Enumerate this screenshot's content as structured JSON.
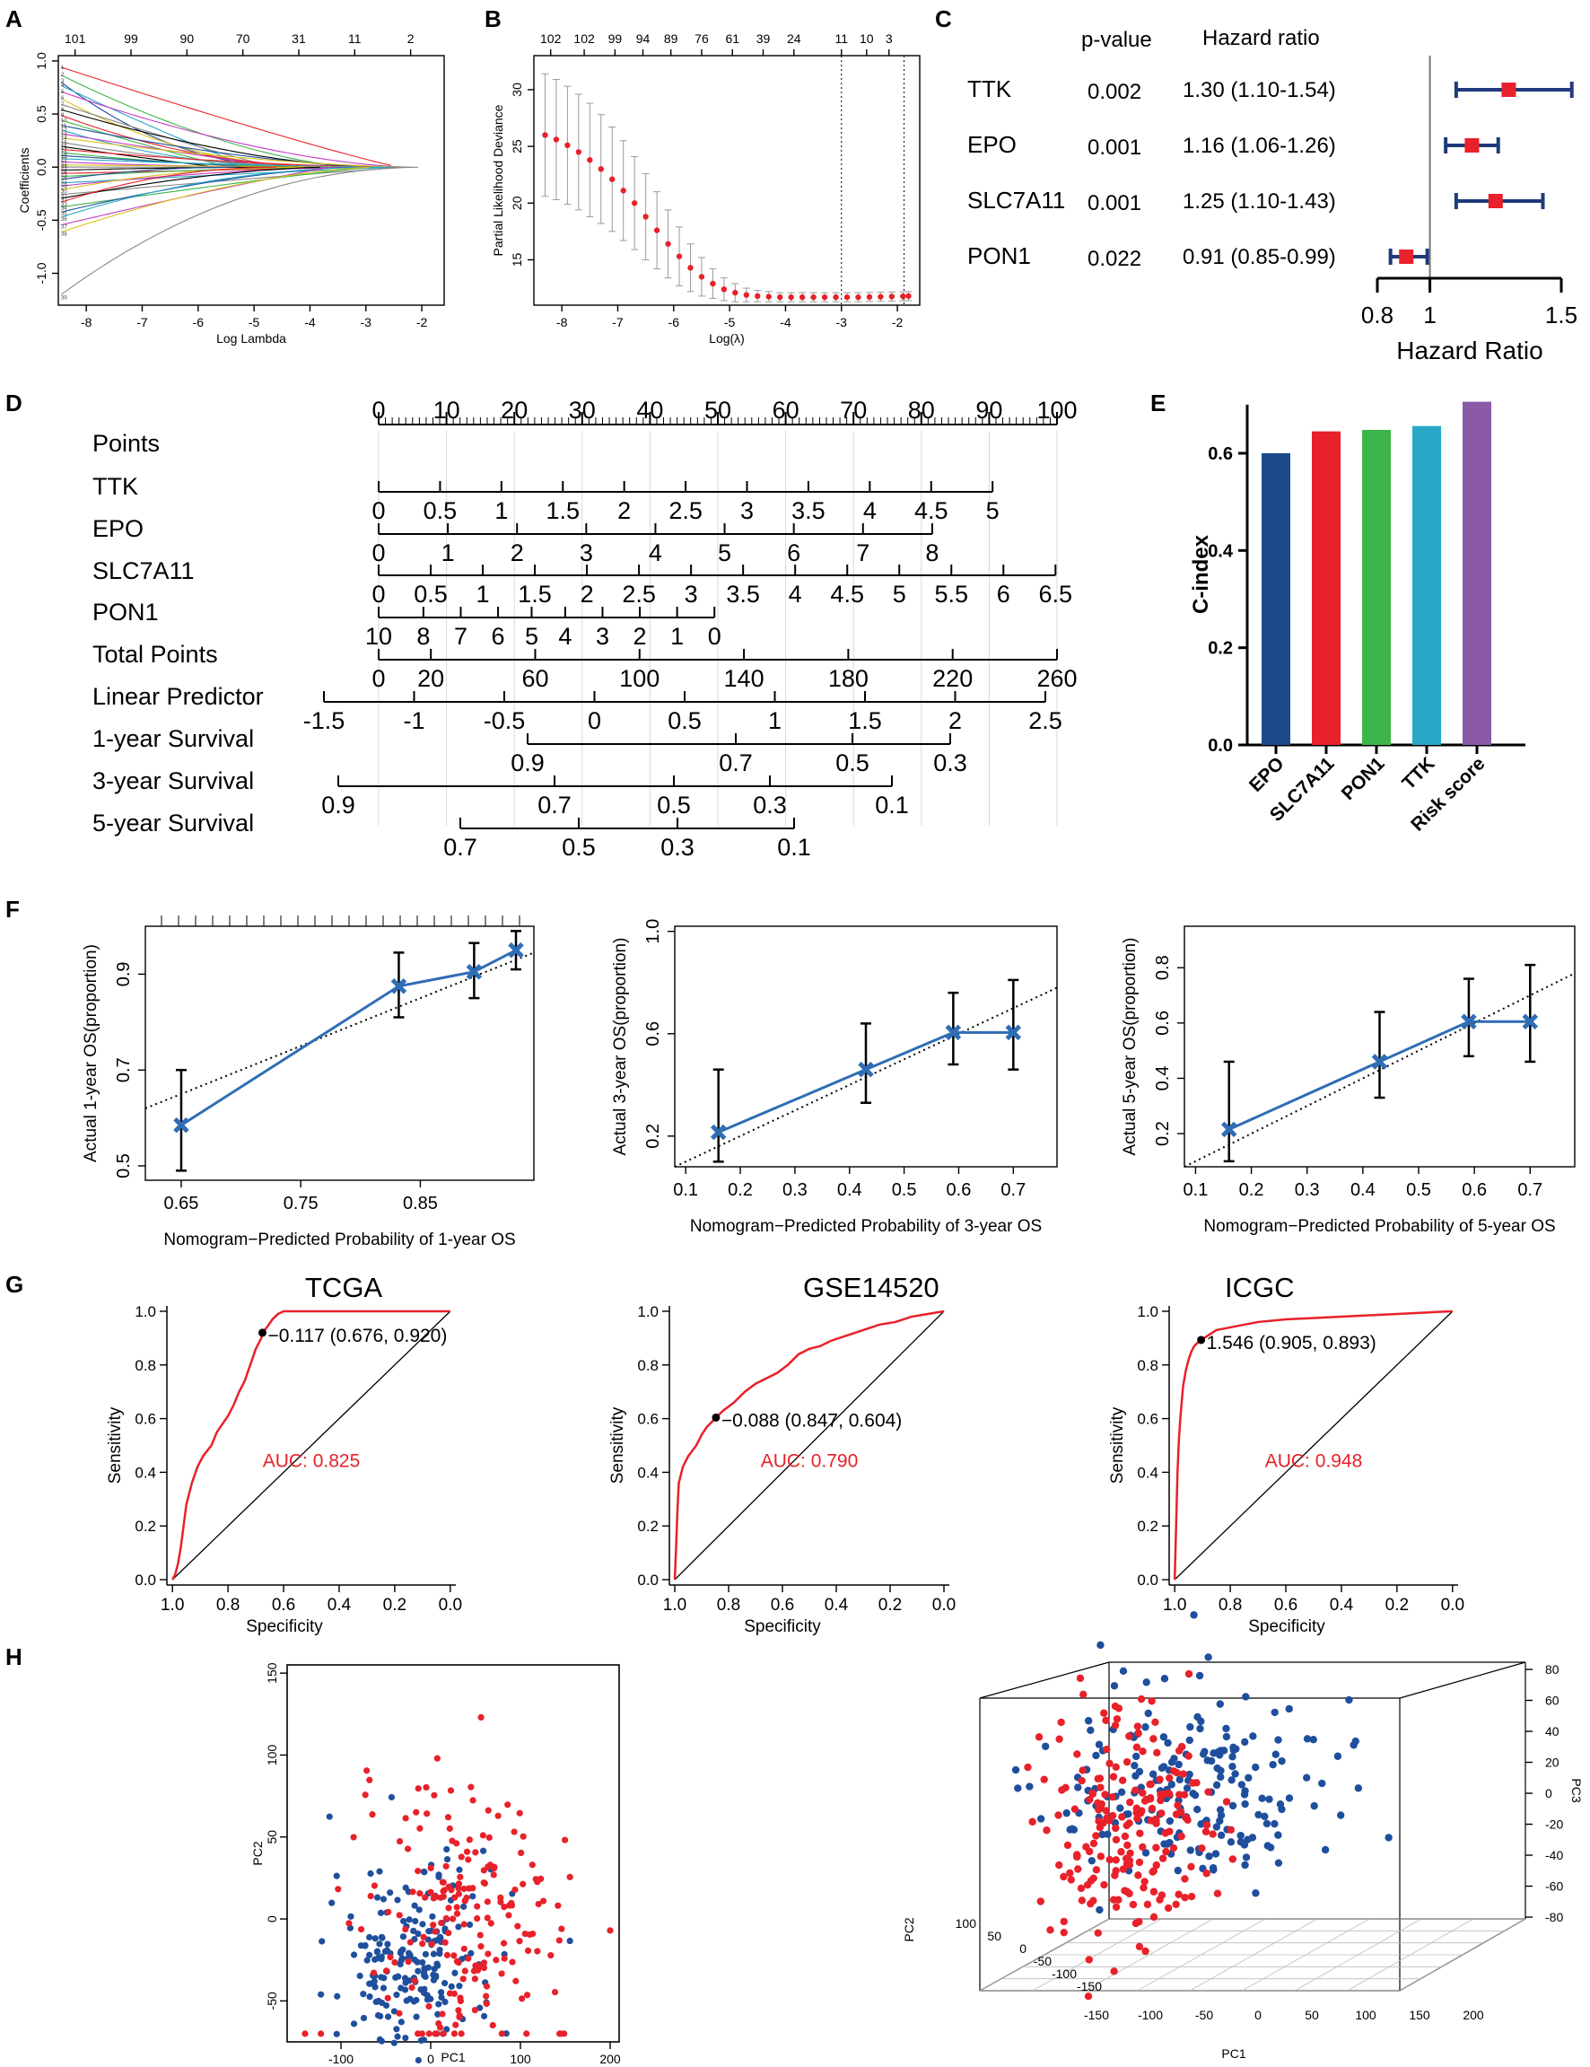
{
  "colors": {
    "red": "#e8212a",
    "navy": "#1f3a7a",
    "blue": "#1f4f9c",
    "mid_blue": "#2f6db5",
    "grey": "#9a9a9a",
    "black": "#000000",
    "bar_epo": "#1c4a8c",
    "bar_slc7a11": "#e8212a",
    "bar_pon1": "#3db54a",
    "bar_ttk": "#27a8c7",
    "bar_risk": "#8a5aa8"
  },
  "chart_data": [
    {
      "panel": "A",
      "type": "line",
      "title": "",
      "xlabel": "Log Lambda",
      "ylabel": "Coefficients",
      "xlim": [
        -8.5,
        -1.6
      ],
      "ylim": [
        -1.3,
        1.05
      ],
      "xticks": [
        -8,
        -7,
        -6,
        -5,
        -4,
        -3,
        -2
      ],
      "yticks": [
        -1.0,
        -0.5,
        0.0,
        0.5,
        1.0
      ],
      "top_axis": {
        "positions": [
          -8.2,
          -7.2,
          -6.2,
          -5.2,
          -4.2,
          -3.2,
          -2.2
        ],
        "labels": [
          "101",
          "99",
          "90",
          "70",
          "31",
          "11",
          "2"
        ]
      },
      "series_start_values": [
        0.95,
        0.88,
        0.82,
        0.78,
        0.72,
        0.66,
        0.6,
        0.55,
        0.5,
        0.45,
        0.4,
        0.36,
        0.32,
        0.28,
        0.24,
        0.2,
        0.17,
        0.14,
        0.11,
        0.08,
        0.05,
        0.02,
        0.0,
        -0.03,
        -0.06,
        -0.09,
        -0.12,
        -0.15,
        -0.18,
        -0.22,
        -0.26,
        -0.3,
        -0.34,
        -0.38,
        -0.43,
        -0.48,
        -0.55,
        -0.62,
        -1.22
      ],
      "series_zero_at": [
        -2.4,
        -3.1,
        -4.2,
        -5.0,
        -2.2,
        -3.6,
        -4.6,
        -2.9,
        -3.3,
        -5.4,
        -2.6,
        -3.9,
        -4.4,
        -2.1,
        -3.0,
        -5.6,
        -2.5,
        -3.4,
        -4.8,
        -2.3,
        -3.8,
        -2.7,
        -2.0,
        -4.1,
        -2.8,
        -3.5,
        -5.2,
        -2.4,
        -3.2,
        -4.0,
        -2.2,
        -3.7,
        -4.5,
        -2.9,
        -3.1,
        -2.6,
        -3.6,
        -2.8,
        -1.9
      ]
    },
    {
      "panel": "B",
      "type": "scatter",
      "title": "",
      "xlabel": "Log(λ)",
      "ylabel": "Partial Likelihood Deviance",
      "xlim": [
        -8.5,
        -1.6
      ],
      "ylim": [
        11,
        33
      ],
      "xticks": [
        -8,
        -7,
        -6,
        -5,
        -4,
        -3,
        -2
      ],
      "yticks": [
        15,
        20,
        25,
        30
      ],
      "top_axis": {
        "positions": [
          -8.2,
          -7.6,
          -7.05,
          -6.55,
          -6.05,
          -5.5,
          -4.95,
          -4.4,
          -3.85,
          -3.0,
          -2.55,
          -2.15
        ],
        "labels": [
          "102",
          "102",
          "99",
          "94",
          "89",
          "76",
          "61",
          "39",
          "24",
          "11",
          "10",
          "3"
        ]
      },
      "vlines": [
        -3.0,
        -1.88
      ],
      "x": [
        -8.3,
        -8.1,
        -7.9,
        -7.7,
        -7.5,
        -7.3,
        -7.1,
        -6.9,
        -6.7,
        -6.5,
        -6.3,
        -6.1,
        -5.9,
        -5.7,
        -5.5,
        -5.3,
        -5.1,
        -4.9,
        -4.7,
        -4.5,
        -4.3,
        -4.1,
        -3.9,
        -3.7,
        -3.5,
        -3.3,
        -3.1,
        -2.9,
        -2.7,
        -2.5,
        -2.3,
        -2.1,
        -1.9,
        -1.8
      ],
      "y": [
        26.0,
        25.6,
        25.1,
        24.5,
        23.8,
        23.0,
        22.1,
        21.1,
        20.0,
        18.8,
        17.6,
        16.4,
        15.3,
        14.3,
        13.5,
        12.9,
        12.4,
        12.1,
        11.9,
        11.8,
        11.75,
        11.7,
        11.7,
        11.7,
        11.7,
        11.7,
        11.7,
        11.7,
        11.7,
        11.72,
        11.74,
        11.76,
        11.78,
        11.8
      ],
      "err": [
        5.4,
        5.3,
        5.2,
        5.1,
        5.0,
        4.8,
        4.6,
        4.4,
        4.1,
        3.8,
        3.4,
        3.0,
        2.6,
        2.1,
        1.7,
        1.3,
        1.0,
        0.8,
        0.6,
        0.5,
        0.45,
        0.4,
        0.4,
        0.4,
        0.4,
        0.4,
        0.4,
        0.4,
        0.4,
        0.4,
        0.4,
        0.4,
        0.4,
        0.4
      ]
    },
    {
      "panel": "C",
      "type": "forest",
      "xlabel": "Hazard Ratio",
      "xlim": [
        0.8,
        1.5
      ],
      "xticks": [
        "0.8",
        "1",
        "1.5"
      ],
      "col_headers": [
        "p-value",
        "Hazard ratio"
      ],
      "rows": [
        {
          "gene": "TTK",
          "p": "0.002",
          "hr_text": "1.30 (1.10-1.54)",
          "hr": 1.3,
          "lo": 1.1,
          "hi": 1.54
        },
        {
          "gene": "EPO",
          "p": "0.001",
          "hr_text": "1.16 (1.06-1.26)",
          "hr": 1.16,
          "lo": 1.06,
          "hi": 1.26
        },
        {
          "gene": "SLC7A11",
          "p": "0.001",
          "hr_text": "1.25 (1.10-1.43)",
          "hr": 1.25,
          "lo": 1.1,
          "hi": 1.43
        },
        {
          "gene": "PON1",
          "p": "0.022",
          "hr_text": "0.91 (0.85-0.99)",
          "hr": 0.91,
          "lo": 0.85,
          "hi": 0.99
        }
      ]
    },
    {
      "panel": "D",
      "type": "nomogram",
      "scales": [
        {
          "label": "Points",
          "values": [
            0,
            100
          ],
          "ticks": [
            "0",
            "10",
            "20",
            "30",
            "40",
            "50",
            "60",
            "70",
            "80",
            "90",
            "100"
          ]
        },
        {
          "label": "TTK",
          "ticks": [
            "0",
            "0.5",
            "1",
            "1.5",
            "2",
            "2.5",
            "3",
            "3.5",
            "4",
            "4.5",
            "5"
          ]
        },
        {
          "label": "EPO",
          "ticks": [
            "0",
            "1",
            "2",
            "3",
            "4",
            "5",
            "6",
            "7",
            "8"
          ]
        },
        {
          "label": "SLC7A11",
          "ticks": [
            "0",
            "0.5",
            "1",
            "1.5",
            "2",
            "2.5",
            "3",
            "3.5",
            "4",
            "4.5",
            "5",
            "5.5",
            "6",
            "6.5"
          ]
        },
        {
          "label": "PON1",
          "ticks": [
            "10",
            "8",
            "7",
            "6",
            "5",
            "4",
            "3",
            "2",
            "1",
            "0"
          ]
        },
        {
          "label": "Total Points",
          "ticks": [
            "0",
            "20",
            "60",
            "100",
            "140",
            "180",
            "220",
            "260"
          ]
        },
        {
          "label": "Linear Predictor",
          "ticks": [
            "-1.5",
            "-1",
            "-0.5",
            "0",
            "0.5",
            "1",
            "1.5",
            "2",
            "2.5"
          ]
        },
        {
          "label": "1-year Survival",
          "ticks": [
            "0.9",
            "0.7",
            "0.5",
            "0.3"
          ]
        },
        {
          "label": "3-year Survival",
          "ticks": [
            "0.9",
            "0.7",
            "0.5",
            "0.3",
            "0.1"
          ]
        },
        {
          "label": "5-year Survival",
          "ticks": [
            "0.7",
            "0.5",
            "0.3",
            "0.1"
          ]
        }
      ]
    },
    {
      "panel": "E",
      "type": "bar",
      "ylabel": "C-index",
      "ylim": [
        0,
        0.72
      ],
      "yticks": [
        "0.0",
        "0.2",
        "0.4",
        "0.6"
      ],
      "categories": [
        "EPO",
        "SLC7A11",
        "PON1",
        "TTK",
        "Risk score"
      ],
      "values": [
        0.6,
        0.645,
        0.648,
        0.656,
        0.706
      ]
    },
    {
      "panel": "F",
      "type": "calibration",
      "charts": [
        {
          "xlabel": "Nomogram−Predicted Probability of 1-year OS",
          "ylabel": "Actual 1-year OS(proportion)",
          "xlim": [
            0.62,
            0.945
          ],
          "ylim": [
            0.47,
            1.0
          ],
          "xticks": [
            "0.65",
            "0.75",
            "0.85"
          ],
          "yticks": [
            "0.5",
            "0.7",
            "0.9"
          ],
          "x": [
            0.65,
            0.832,
            0.895,
            0.93
          ],
          "y": [
            0.585,
            0.875,
            0.905,
            0.95
          ],
          "lo": [
            0.49,
            0.81,
            0.85,
            0.91
          ],
          "hi": [
            0.7,
            0.945,
            0.965,
            0.99
          ]
        },
        {
          "xlabel": "Nomogram−Predicted Probability of 3-year OS",
          "ylabel": "Actual 3-year OS(proportion)",
          "xlim": [
            0.08,
            0.78
          ],
          "ylim": [
            0.08,
            1.02
          ],
          "xticks": [
            "0.1",
            "0.2",
            "0.3",
            "0.4",
            "0.5",
            "0.6",
            "0.7"
          ],
          "yticks": [
            "0.2",
            "0.6",
            "1.0"
          ],
          "x": [
            0.16,
            0.43,
            0.59,
            0.7
          ],
          "y": [
            0.215,
            0.46,
            0.605,
            0.605
          ],
          "lo": [
            0.1,
            0.33,
            0.48,
            0.46
          ],
          "hi": [
            0.46,
            0.64,
            0.76,
            0.81
          ]
        },
        {
          "xlabel": "Nomogram−Predicted Probability of 5-year OS",
          "ylabel": "Actual 5-year OS(proportion)",
          "xlim": [
            0.08,
            0.78
          ],
          "ylim": [
            0.08,
            0.95
          ],
          "xticks": [
            "0.1",
            "0.2",
            "0.3",
            "0.4",
            "0.5",
            "0.6",
            "0.7"
          ],
          "yticks": [
            "0.2",
            "0.4",
            "0.6",
            "0.8"
          ],
          "x": [
            0.16,
            0.43,
            0.59,
            0.7
          ],
          "y": [
            0.215,
            0.46,
            0.605,
            0.605
          ],
          "lo": [
            0.1,
            0.33,
            0.48,
            0.46
          ],
          "hi": [
            0.46,
            0.64,
            0.76,
            0.81
          ]
        }
      ]
    },
    {
      "panel": "G",
      "type": "roc",
      "charts": [
        {
          "title": "TCGA",
          "auc_text": "AUC: 0.825",
          "point_text": "−0.117 (0.676, 0.920)",
          "point": [
            0.676,
            0.92
          ],
          "spec": [
            1.0,
            0.99,
            0.98,
            0.97,
            0.96,
            0.95,
            0.93,
            0.91,
            0.89,
            0.86,
            0.84,
            0.82,
            0.8,
            0.78,
            0.76,
            0.74,
            0.72,
            0.7,
            0.68,
            0.676,
            0.66,
            0.64,
            0.62,
            0.6,
            0.5,
            0.3,
            0.0
          ],
          "sens": [
            0.0,
            0.02,
            0.06,
            0.12,
            0.2,
            0.28,
            0.36,
            0.42,
            0.46,
            0.5,
            0.55,
            0.58,
            0.61,
            0.65,
            0.7,
            0.74,
            0.8,
            0.86,
            0.9,
            0.92,
            0.94,
            0.97,
            0.99,
            1.0,
            1.0,
            1.0,
            1.0
          ]
        },
        {
          "title": "GSE14520",
          "auc_text": "AUC: 0.790",
          "point_text": "−0.088 (0.847, 0.604)",
          "point": [
            0.847,
            0.604
          ],
          "spec": [
            1.0,
            0.995,
            0.99,
            0.985,
            0.97,
            0.95,
            0.92,
            0.9,
            0.88,
            0.86,
            0.847,
            0.82,
            0.78,
            0.74,
            0.7,
            0.66,
            0.62,
            0.58,
            0.54,
            0.5,
            0.46,
            0.42,
            0.36,
            0.3,
            0.24,
            0.18,
            0.12,
            0.06,
            0.0
          ],
          "sens": [
            0.0,
            0.12,
            0.26,
            0.36,
            0.42,
            0.46,
            0.5,
            0.54,
            0.57,
            0.59,
            0.604,
            0.63,
            0.66,
            0.7,
            0.73,
            0.75,
            0.77,
            0.8,
            0.84,
            0.86,
            0.87,
            0.89,
            0.91,
            0.93,
            0.95,
            0.96,
            0.98,
            0.99,
            1.0
          ]
        },
        {
          "title": "ICGC",
          "auc_text": "AUC: 0.948",
          "point_text": "1.546 (0.905, 0.893)",
          "point": [
            0.905,
            0.893
          ],
          "spec": [
            1.0,
            0.995,
            0.99,
            0.985,
            0.98,
            0.975,
            0.97,
            0.96,
            0.95,
            0.94,
            0.93,
            0.92,
            0.905,
            0.88,
            0.85,
            0.8,
            0.75,
            0.7,
            0.6,
            0.5,
            0.4,
            0.3,
            0.2,
            0.1,
            0.05,
            0.0
          ],
          "sens": [
            0.0,
            0.2,
            0.4,
            0.52,
            0.6,
            0.66,
            0.72,
            0.78,
            0.82,
            0.85,
            0.87,
            0.88,
            0.893,
            0.91,
            0.93,
            0.94,
            0.95,
            0.96,
            0.97,
            0.975,
            0.98,
            0.985,
            0.99,
            0.995,
            0.998,
            1.0
          ]
        }
      ],
      "xlabel": "Specificity",
      "ylabel": "Sensitivity",
      "ticks": [
        "1.0",
        "0.8",
        "0.6",
        "0.4",
        "0.2",
        "0.0"
      ]
    },
    {
      "panel": "H",
      "type": "scatter",
      "charts": [
        {
          "xlabel": "PC1",
          "ylabel": "PC2",
          "xlim": [
            -160,
            210
          ],
          "ylim": [
            -75,
            155
          ],
          "xticks": [
            "-100",
            "0",
            "100",
            "200"
          ],
          "yticks": [
            "-50",
            "0",
            "50",
            "100",
            "150"
          ]
        },
        {
          "xlabel": "PC1",
          "ylabel": "PC2",
          "zlabel": "PC3",
          "xticks": [
            "-150",
            "-100",
            "-50",
            "0",
            "50",
            "100",
            "150",
            "200"
          ],
          "yticks": [
            "100",
            "50",
            "0",
            "-50",
            "-100",
            "-150"
          ],
          "zticks": [
            "80",
            "60",
            "40",
            "20",
            "0",
            "-20",
            "-40",
            "-60",
            "-80"
          ]
        }
      ]
    }
  ],
  "panel_letters": {
    "a": "A",
    "b": "B",
    "c": "C",
    "d": "D",
    "e": "E",
    "f": "F",
    "g": "G",
    "h": "H"
  }
}
